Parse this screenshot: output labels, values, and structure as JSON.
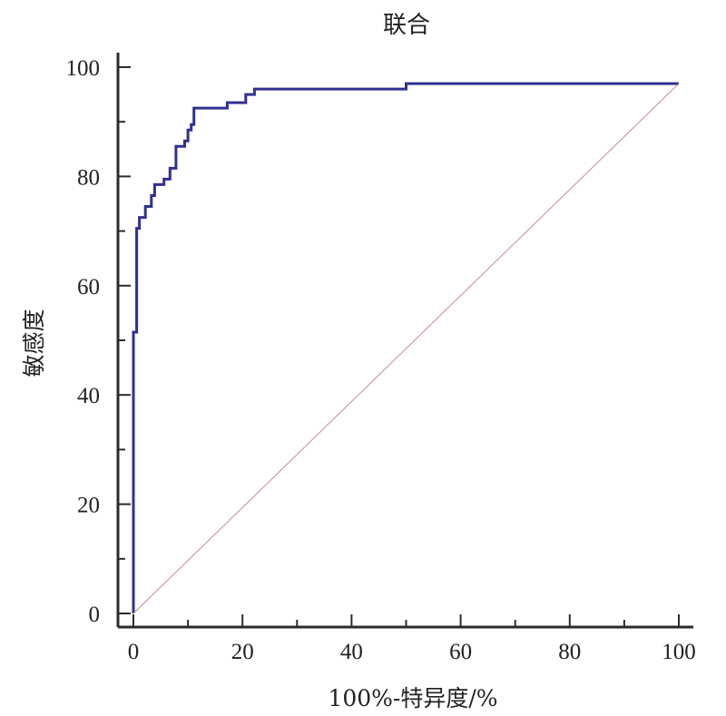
{
  "chart_data": {
    "type": "line",
    "title": "联合",
    "xlabel": "100%-特异度/%",
    "ylabel": "敏感度",
    "xlim": [
      0,
      100
    ],
    "ylim": [
      0,
      100
    ],
    "x_ticks": [
      "0",
      "20",
      "40",
      "60",
      "80",
      "100"
    ],
    "y_ticks": [
      "0",
      "20",
      "40",
      "60",
      "80",
      "100"
    ],
    "grid": false,
    "legend": "none",
    "series": [
      {
        "x": [
          0,
          0,
          0.6,
          0.6,
          1.1,
          1.1,
          2.2,
          2.2,
          3.3,
          3.3,
          3.9,
          3.9,
          5.6,
          5.6,
          6.7,
          6.7,
          7.8,
          7.8,
          9.4,
          9.4,
          10.0,
          10.0,
          10.6,
          10.6,
          11.1,
          11.1,
          17.2,
          17.2,
          20.6,
          20.6,
          22.2,
          22.2,
          50.0,
          50.0,
          100
        ],
        "y": [
          0,
          51.5,
          51.5,
          70.5,
          70.5,
          72.5,
          72.5,
          74.5,
          74.5,
          76.5,
          76.5,
          78.5,
          78.5,
          79.5,
          79.5,
          81.5,
          81.5,
          85.5,
          85.5,
          86.5,
          86.5,
          88.5,
          88.5,
          89.5,
          89.5,
          92.5,
          92.5,
          93.5,
          93.5,
          95.0,
          95.0,
          96.0,
          96.0,
          97.0,
          97.0
        ],
        "color": "#2e3192"
      },
      {
        "x": [
          0,
          100
        ],
        "y": [
          0,
          97.0
        ],
        "color": "#c98a8a"
      }
    ]
  }
}
